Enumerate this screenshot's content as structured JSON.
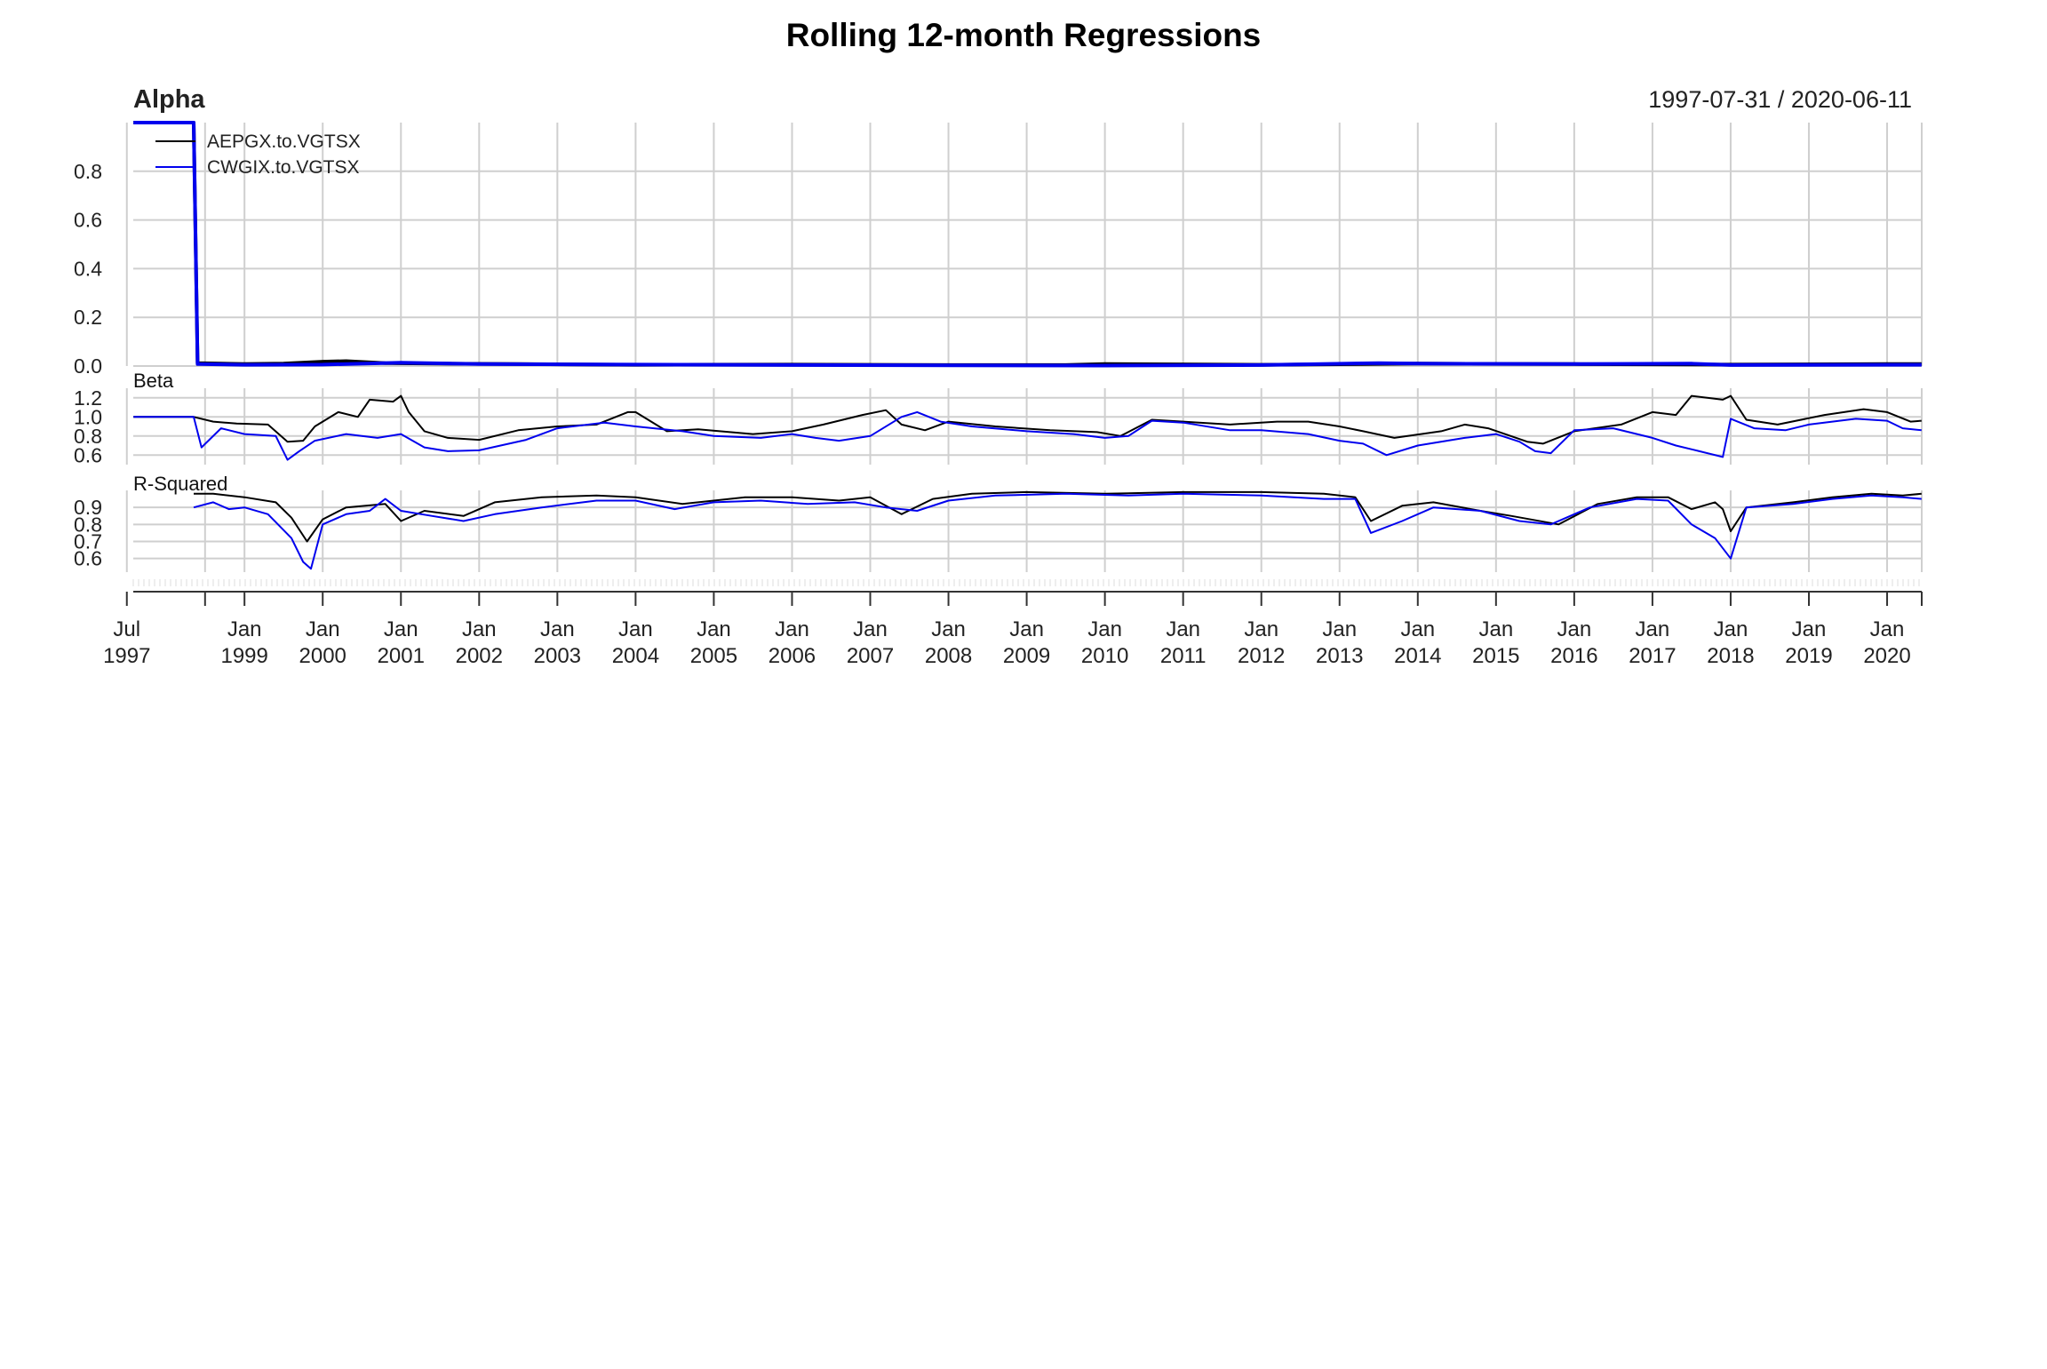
{
  "chart_data": {
    "type": "line",
    "title": "Rolling 12-month Regressions",
    "date_range": "1997-07-31 / 2020-06-11",
    "x_start": "1997-07-31",
    "x_end": "2020-06-11",
    "series_meta": [
      {
        "name": "AEPGX.to.VGTSX",
        "color": "#000000"
      },
      {
        "name": "CWGIX.to.VGTSX",
        "color": "#0000ee"
      }
    ],
    "x_axis": {
      "ticks": [
        {
          "date": "1997-07-01",
          "line1": "Jul",
          "line2": "1997"
        },
        {
          "date": "1998-07-01",
          "line1": "",
          "line2": ""
        },
        {
          "date": "1999-01-01",
          "line1": "Jan",
          "line2": "1999"
        },
        {
          "date": "2000-01-01",
          "line1": "Jan",
          "line2": "2000"
        },
        {
          "date": "2001-01-01",
          "line1": "Jan",
          "line2": "2001"
        },
        {
          "date": "2002-01-01",
          "line1": "Jan",
          "line2": "2002"
        },
        {
          "date": "2003-01-01",
          "line1": "Jan",
          "line2": "2003"
        },
        {
          "date": "2004-01-01",
          "line1": "Jan",
          "line2": "2004"
        },
        {
          "date": "2005-01-01",
          "line1": "Jan",
          "line2": "2005"
        },
        {
          "date": "2006-01-01",
          "line1": "Jan",
          "line2": "2006"
        },
        {
          "date": "2007-01-01",
          "line1": "Jan",
          "line2": "2007"
        },
        {
          "date": "2008-01-01",
          "line1": "Jan",
          "line2": "2008"
        },
        {
          "date": "2009-01-01",
          "line1": "Jan",
          "line2": "2009"
        },
        {
          "date": "2010-01-01",
          "line1": "Jan",
          "line2": "2010"
        },
        {
          "date": "2011-01-01",
          "line1": "Jan",
          "line2": "2011"
        },
        {
          "date": "2012-01-01",
          "line1": "Jan",
          "line2": "2012"
        },
        {
          "date": "2013-01-01",
          "line1": "Jan",
          "line2": "2013"
        },
        {
          "date": "2014-01-01",
          "line1": "Jan",
          "line2": "2014"
        },
        {
          "date": "2015-01-01",
          "line1": "Jan",
          "line2": "2015"
        },
        {
          "date": "2016-01-01",
          "line1": "Jan",
          "line2": "2016"
        },
        {
          "date": "2017-01-01",
          "line1": "Jan",
          "line2": "2017"
        },
        {
          "date": "2018-01-01",
          "line1": "Jan",
          "line2": "2018"
        },
        {
          "date": "2019-01-01",
          "line1": "Jan",
          "line2": "2019"
        },
        {
          "date": "2020-01-01",
          "line1": "Jan",
          "line2": "2020"
        }
      ]
    },
    "panels": [
      {
        "title": "Alpha",
        "ylim": [
          0.0,
          1.0
        ],
        "yticks": [
          "0.0",
          "0.2",
          "0.4",
          "0.6",
          "0.8"
        ],
        "ytick_values": [
          0.0,
          0.2,
          0.4,
          0.6,
          0.8
        ],
        "series": [
          {
            "name": "AEPGX.to.VGTSX",
            "x": [
              1997.58,
              1998.35,
              1998.4,
              1999.0,
              1999.5,
              2000.0,
              2000.3,
              2000.8,
              2001.5,
              2002.5,
              2004.0,
              2006.0,
              2008.0,
              2009.5,
              2010.0,
              2012.0,
              2014.0,
              2016.0,
              2018.0,
              2020.0,
              2020.44
            ],
            "values": [
              1.0,
              1.0,
              0.012,
              0.008,
              0.01,
              0.018,
              0.02,
              0.012,
              0.01,
              0.008,
              0.005,
              0.006,
              0.004,
              0.004,
              0.008,
              0.005,
              0.01,
              0.008,
              0.006,
              0.008,
              0.008
            ]
          },
          {
            "name": "CWGIX.to.VGTSX",
            "x": [
              1997.58,
              1998.35,
              1998.4,
              1999.0,
              2000.0,
              2001.0,
              2002.0,
              2004.0,
              2006.0,
              2008.0,
              2010.0,
              2012.0,
              2013.5,
              2014.0,
              2016.0,
              2017.5,
              2018.0,
              2020.0,
              2020.44
            ],
            "values": [
              1.0,
              1.0,
              0.008,
              0.005,
              0.006,
              0.014,
              0.008,
              0.006,
              0.004,
              0.003,
              0.002,
              0.004,
              0.012,
              0.01,
              0.008,
              0.01,
              0.004,
              0.005,
              0.005
            ]
          }
        ]
      },
      {
        "title": "Beta",
        "ylim": [
          0.5,
          1.3
        ],
        "yticks": [
          "0.6",
          "0.8",
          "1.0",
          "1.2"
        ],
        "ytick_values": [
          0.6,
          0.8,
          1.0,
          1.2
        ],
        "series": [
          {
            "name": "AEPGX.to.VGTSX",
            "x": [
              1997.58,
              1998.35,
              1998.6,
              1998.9,
              1999.3,
              1999.55,
              1999.75,
              1999.9,
              2000.2,
              2000.45,
              2000.6,
              2000.9,
              2001.0,
              2001.1,
              2001.3,
              2001.6,
              2002.0,
              2002.5,
              2003.0,
              2003.5,
              2003.9,
              2004.0,
              2004.4,
              2004.8,
              2005.5,
              2006.0,
              2006.4,
              2006.9,
              2007.2,
              2007.4,
              2007.7,
              2008.0,
              2008.6,
              2009.3,
              2009.9,
              2010.2,
              2010.6,
              2011.0,
              2011.6,
              2012.2,
              2012.6,
              2013.0,
              2013.3,
              2013.7,
              2014.3,
              2014.6,
              2014.9,
              2015.4,
              2015.6,
              2016.0,
              2016.6,
              2017.0,
              2017.3,
              2017.5,
              2017.9,
              2018.0,
              2018.2,
              2018.6,
              2019.2,
              2019.7,
              2020.0,
              2020.3,
              2020.44
            ],
            "values": [
              1.0,
              1.0,
              0.95,
              0.93,
              0.92,
              0.74,
              0.75,
              0.9,
              1.05,
              1.0,
              1.18,
              1.16,
              1.22,
              1.05,
              0.85,
              0.78,
              0.76,
              0.86,
              0.9,
              0.92,
              1.05,
              1.05,
              0.85,
              0.87,
              0.82,
              0.85,
              0.92,
              1.02,
              1.07,
              0.92,
              0.86,
              0.95,
              0.9,
              0.86,
              0.84,
              0.8,
              0.97,
              0.95,
              0.92,
              0.95,
              0.95,
              0.9,
              0.85,
              0.78,
              0.85,
              0.92,
              0.88,
              0.74,
              0.72,
              0.85,
              0.92,
              1.05,
              1.02,
              1.22,
              1.18,
              1.22,
              0.97,
              0.92,
              1.02,
              1.08,
              1.05,
              0.95,
              0.96
            ]
          },
          {
            "name": "CWGIX.to.VGTSX",
            "x": [
              1997.58,
              1998.35,
              1998.45,
              1998.7,
              1999.0,
              1999.4,
              1999.55,
              1999.7,
              1999.9,
              2000.3,
              2000.7,
              2001.0,
              2001.3,
              2001.6,
              2002.0,
              2002.6,
              2003.0,
              2003.6,
              2004.0,
              2004.6,
              2005.0,
              2005.6,
              2006.0,
              2006.3,
              2006.6,
              2007.0,
              2007.4,
              2007.6,
              2007.9,
              2008.3,
              2009.0,
              2009.6,
              2010.0,
              2010.3,
              2010.6,
              2011.0,
              2011.6,
              2012.0,
              2012.6,
              2013.0,
              2013.3,
              2013.6,
              2014.0,
              2014.6,
              2015.0,
              2015.3,
              2015.5,
              2015.7,
              2016.0,
              2016.5,
              2017.0,
              2017.3,
              2017.6,
              2017.9,
              2018.0,
              2018.3,
              2018.7,
              2019.0,
              2019.6,
              2020.0,
              2020.2,
              2020.44
            ],
            "values": [
              1.0,
              1.0,
              0.68,
              0.88,
              0.82,
              0.8,
              0.55,
              0.64,
              0.75,
              0.82,
              0.78,
              0.82,
              0.68,
              0.64,
              0.65,
              0.76,
              0.88,
              0.94,
              0.9,
              0.85,
              0.8,
              0.78,
              0.82,
              0.78,
              0.75,
              0.8,
              1.0,
              1.05,
              0.95,
              0.9,
              0.85,
              0.82,
              0.78,
              0.8,
              0.96,
              0.94,
              0.86,
              0.86,
              0.82,
              0.75,
              0.72,
              0.6,
              0.7,
              0.78,
              0.82,
              0.74,
              0.64,
              0.62,
              0.86,
              0.88,
              0.78,
              0.7,
              0.64,
              0.58,
              0.98,
              0.88,
              0.86,
              0.92,
              0.98,
              0.96,
              0.88,
              0.86
            ]
          }
        ]
      },
      {
        "title": "R-Squared",
        "ylim": [
          0.52,
          1.0
        ],
        "yticks": [
          "0.6",
          "0.7",
          "0.8",
          "0.9"
        ],
        "ytick_values": [
          0.6,
          0.7,
          0.8,
          0.9
        ],
        "series": [
          {
            "name": "AEPGX.to.VGTSX",
            "x": [
              1998.35,
              1998.6,
              1999.0,
              1999.4,
              1999.6,
              1999.8,
              2000.0,
              2000.3,
              2000.8,
              2001.0,
              2001.3,
              2001.8,
              2002.2,
              2002.8,
              2003.5,
              2004.0,
              2004.6,
              2005.4,
              2006.0,
              2006.6,
              2007.0,
              2007.4,
              2007.8,
              2008.3,
              2009.0,
              2010.0,
              2011.0,
              2012.0,
              2012.8,
              2013.2,
              2013.4,
              2013.8,
              2014.2,
              2014.8,
              2015.2,
              2015.8,
              2016.3,
              2016.8,
              2017.2,
              2017.5,
              2017.8,
              2017.9,
              2018.0,
              2018.2,
              2018.8,
              2019.3,
              2019.8,
              2020.2,
              2020.44
            ],
            "values": [
              0.98,
              0.98,
              0.96,
              0.93,
              0.84,
              0.7,
              0.83,
              0.9,
              0.92,
              0.82,
              0.88,
              0.85,
              0.93,
              0.96,
              0.97,
              0.96,
              0.92,
              0.96,
              0.96,
              0.94,
              0.96,
              0.86,
              0.95,
              0.98,
              0.99,
              0.98,
              0.99,
              0.99,
              0.98,
              0.96,
              0.82,
              0.91,
              0.93,
              0.88,
              0.85,
              0.8,
              0.92,
              0.96,
              0.96,
              0.89,
              0.93,
              0.89,
              0.76,
              0.9,
              0.93,
              0.96,
              0.98,
              0.97,
              0.98
            ]
          },
          {
            "name": "CWGIX.to.VGTSX",
            "x": [
              1998.35,
              1998.6,
              1998.8,
              1999.0,
              1999.3,
              1999.6,
              1999.75,
              1999.85,
              2000.0,
              2000.3,
              2000.6,
              2000.8,
              2001.0,
              2001.4,
              2001.8,
              2002.2,
              2002.8,
              2003.5,
              2004.0,
              2004.5,
              2005.0,
              2005.6,
              2006.2,
              2006.8,
              2007.2,
              2007.6,
              2008.0,
              2008.6,
              2009.5,
              2010.3,
              2011.0,
              2012.0,
              2012.8,
              2013.2,
              2013.4,
              2013.8,
              2014.2,
              2014.8,
              2015.3,
              2015.7,
              2016.2,
              2016.8,
              2017.2,
              2017.5,
              2017.8,
              2018.0,
              2018.2,
              2018.8,
              2019.3,
              2019.8,
              2020.2,
              2020.44
            ],
            "values": [
              0.9,
              0.93,
              0.89,
              0.9,
              0.86,
              0.72,
              0.58,
              0.54,
              0.8,
              0.86,
              0.88,
              0.95,
              0.88,
              0.85,
              0.82,
              0.86,
              0.9,
              0.94,
              0.94,
              0.89,
              0.93,
              0.94,
              0.92,
              0.93,
              0.9,
              0.88,
              0.94,
              0.97,
              0.98,
              0.97,
              0.98,
              0.97,
              0.95,
              0.95,
              0.75,
              0.82,
              0.9,
              0.88,
              0.82,
              0.8,
              0.9,
              0.95,
              0.94,
              0.8,
              0.72,
              0.6,
              0.9,
              0.92,
              0.95,
              0.97,
              0.96,
              0.95
            ]
          }
        ]
      }
    ]
  }
}
